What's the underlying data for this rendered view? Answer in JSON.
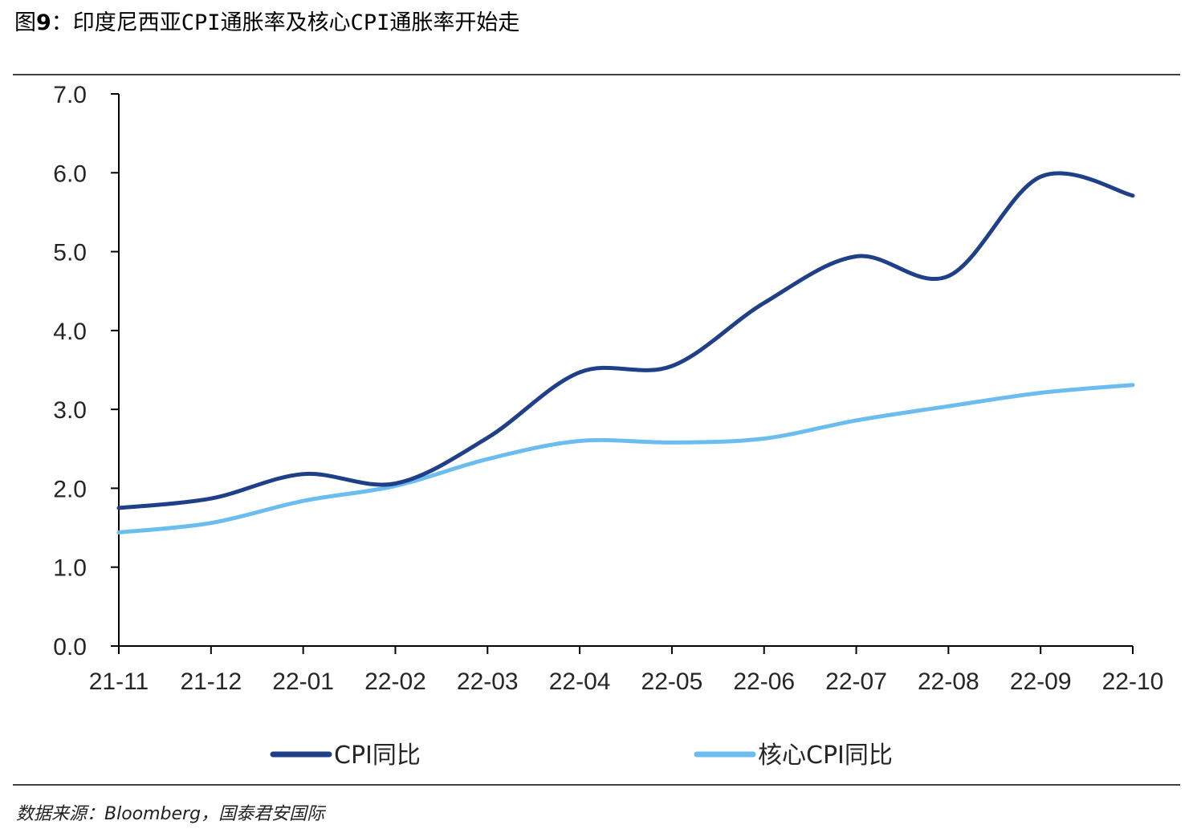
{
  "figure": {
    "label": "图",
    "number": "9",
    "title_text": "：印度尼西亚CPI通胀率及核心CPI通胀率开始走"
  },
  "source": "数据来源：Bloomberg，国泰君安国际",
  "chart_data": {
    "type": "line",
    "title": "",
    "xlabel": "",
    "ylabel": "",
    "ylim": [
      0,
      7
    ],
    "yticks": [
      "0.0",
      "1.0",
      "2.0",
      "3.0",
      "4.0",
      "5.0",
      "6.0",
      "7.0"
    ],
    "categories": [
      "21-11",
      "21-12",
      "22-01",
      "22-02",
      "22-03",
      "22-04",
      "22-05",
      "22-06",
      "22-07",
      "22-08",
      "22-09",
      "22-10"
    ],
    "series": [
      {
        "name": "CPI同比",
        "color": "#1f3f88",
        "values": [
          1.75,
          1.87,
          2.18,
          2.06,
          2.64,
          3.47,
          3.55,
          4.35,
          4.94,
          4.69,
          5.95,
          5.71
        ]
      },
      {
        "name": "核心CPI同比",
        "color": "#6bbdf0",
        "values": [
          1.44,
          1.56,
          1.84,
          2.03,
          2.37,
          2.6,
          2.58,
          2.63,
          2.86,
          3.04,
          3.21,
          3.31
        ]
      }
    ],
    "legend_position": "bottom",
    "grid": false
  }
}
